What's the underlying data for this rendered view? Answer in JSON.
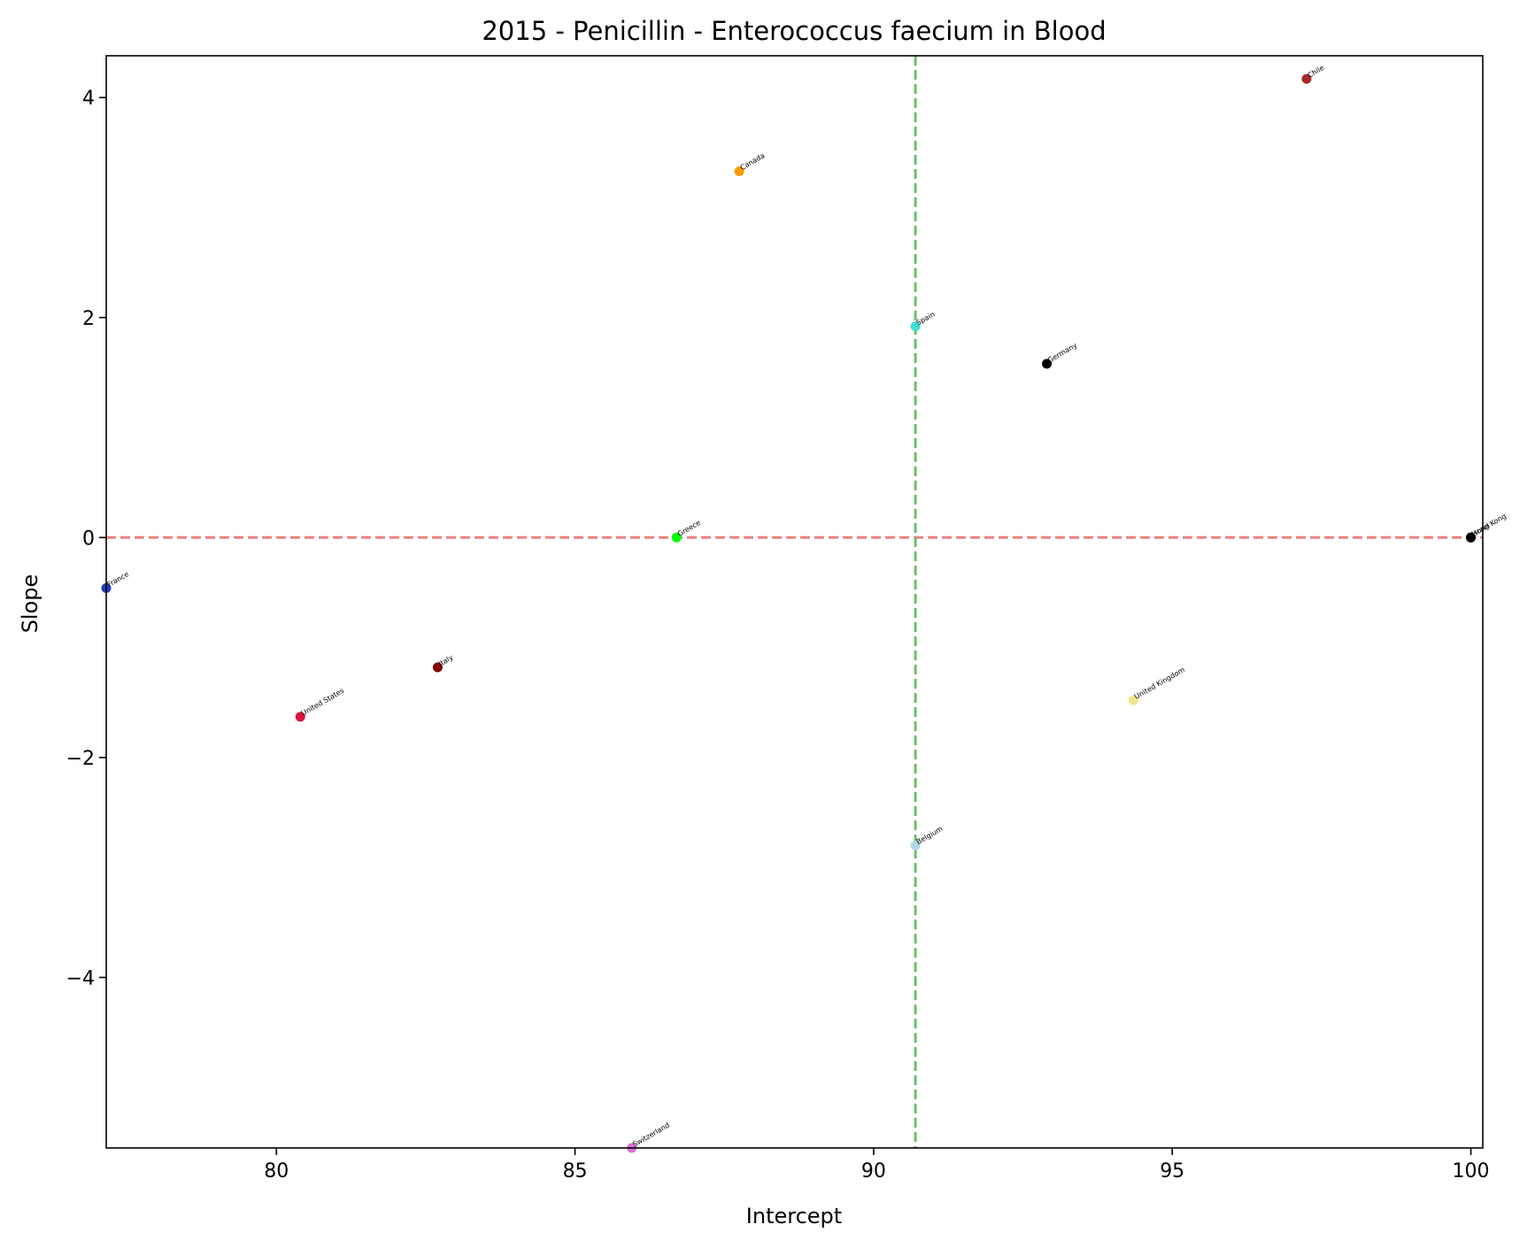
{
  "chart_data": {
    "type": "scatter",
    "title": "2015 - Penicillin - Enterococcus faecium in Blood",
    "xlabel": "Intercept",
    "ylabel": "Slope",
    "xlim": [
      77.15,
      100.2
    ],
    "ylim": [
      -5.55,
      4.38
    ],
    "xticks": [
      80,
      85,
      90,
      95,
      100
    ],
    "yticks": [
      -4,
      -2,
      0,
      2,
      4
    ],
    "xtick_labels": [
      "80",
      "85",
      "90",
      "95",
      "100"
    ],
    "ytick_labels": [
      "−4",
      "−2",
      "0",
      "2",
      "4"
    ],
    "grid": false,
    "reference_lines": [
      {
        "orientation": "horizontal",
        "value": 0,
        "color": "#f08080",
        "style": "dashed"
      },
      {
        "orientation": "vertical",
        "value": 90.7,
        "color": "#6abf6a",
        "style": "dashed"
      }
    ],
    "points": [
      {
        "label": "Chile",
        "x": 97.25,
        "y": 4.17,
        "color": "#a52a2a"
      },
      {
        "label": "Canada",
        "x": 87.75,
        "y": 3.33,
        "color": "#ff9900"
      },
      {
        "label": "Spain",
        "x": 90.7,
        "y": 1.92,
        "color": "#40e0d0"
      },
      {
        "label": "Germany",
        "x": 92.9,
        "y": 1.58,
        "color": "#000000"
      },
      {
        "label": "Greece",
        "x": 86.7,
        "y": 0.0,
        "color": "#00ff00"
      },
      {
        "label": "Hong Kong",
        "x": 100.0,
        "y": 0.0,
        "color": "#000000"
      },
      {
        "label": "Israel",
        "x": 100.0,
        "y": 0.0,
        "color": "#000000"
      },
      {
        "label": "France",
        "x": 77.15,
        "y": -0.46,
        "color": "#1f3fbf"
      },
      {
        "label": "Italy",
        "x": 82.7,
        "y": -1.18,
        "color": "#800000"
      },
      {
        "label": "United States",
        "x": 80.4,
        "y": -1.63,
        "color": "#dc143c"
      },
      {
        "label": "United Kingdom",
        "x": 94.35,
        "y": -1.48,
        "color": "#f0e68c"
      },
      {
        "label": "Belgium",
        "x": 90.7,
        "y": -2.8,
        "color": "#add8e6"
      },
      {
        "label": "Switzerland",
        "x": 85.95,
        "y": -5.55,
        "color": "#da70d6"
      }
    ]
  }
}
